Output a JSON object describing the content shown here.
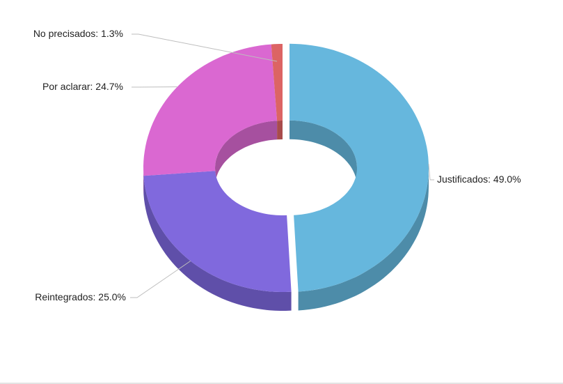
{
  "chart_data": {
    "type": "pie",
    "title": "",
    "slices": [
      {
        "label": "Justificados",
        "value": 49.0,
        "value_text": "49.0%",
        "color": "#66b7dd",
        "side_color": "#4d8ca9",
        "exploded": true
      },
      {
        "label": "Reintegrados",
        "value": 25.0,
        "value_text": "25.0%",
        "color": "#8069dd",
        "side_color": "#5f4fa9",
        "exploded": false
      },
      {
        "label": "Por aclarar",
        "value": 24.7,
        "value_text": "24.7%",
        "color": "#da68d1",
        "side_color": "#a6509f",
        "exploded": false
      },
      {
        "label": "No precisados",
        "value": 1.3,
        "value_text": "1.3%",
        "color": "#dc6464",
        "side_color": "#a84c4c",
        "exploded": false
      }
    ],
    "style": "3d-donut",
    "legend": "none",
    "data_labels": "outside-with-leader-lines"
  }
}
